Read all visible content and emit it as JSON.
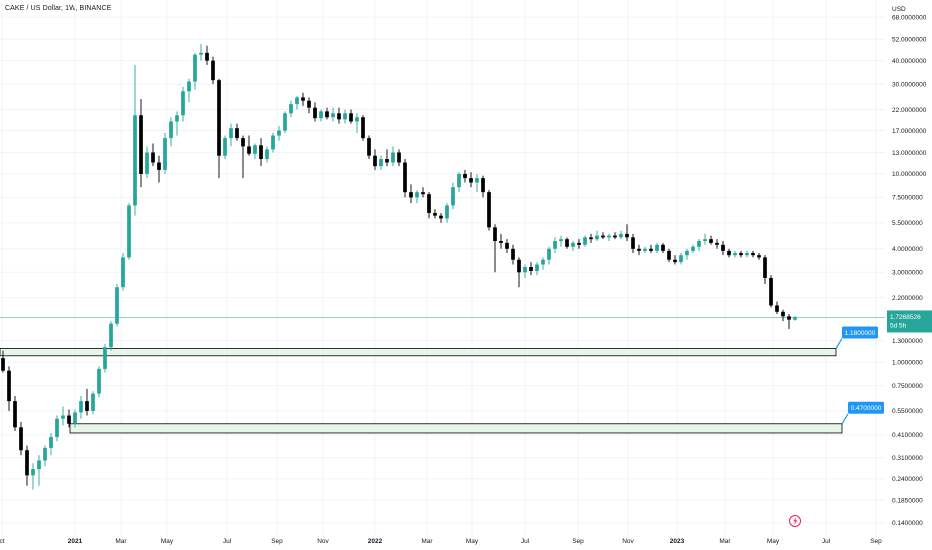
{
  "header": {
    "title": "CAKE / US Dollar, 1W, BINANCE",
    "currency": "USD"
  },
  "colors": {
    "up": "#26a69a",
    "down": "#000000",
    "grid": "#f0f3fa",
    "axis_text": "#131722",
    "zone_fill": "#e8f5e9",
    "zone_border": "#000000",
    "label_bg": "#2196f3",
    "current_price_bg": "#26a69a"
  },
  "chart_data": {
    "type": "candlestick",
    "title": "CAKE / US Dollar, 1W, BINANCE",
    "y_scale": "log",
    "ylim": [
      0.125,
      80
    ],
    "y_ticks": [
      "68.0000000",
      "52.0000000",
      "40.0000000",
      "30.0000000",
      "22.0000000",
      "17.0000000",
      "13.0000000",
      "10.0000000",
      "7.5000000",
      "5.5000000",
      "4.0000000",
      "3.0000000",
      "2.2000000",
      "1.3000000",
      "1.0000000",
      "0.7500000",
      "0.5500000",
      "0.4100000",
      "0.3100000",
      "0.2400000",
      "0.1850000",
      "0.1400000"
    ],
    "x_ticks": [
      "ct",
      "2021",
      "Mar",
      "May",
      "Jul",
      "Sep",
      "Nov",
      "2022",
      "Mar",
      "May",
      "Jul",
      "Sep",
      "Nov",
      "2023",
      "Mar",
      "May",
      "Jul",
      "Sep"
    ],
    "grid": true,
    "current_price": {
      "value": "1.7268526",
      "countdown": "5d 5h"
    },
    "zones": [
      {
        "label": "1.1800000",
        "top": 1.18,
        "bottom": 1.08
      },
      {
        "label": "0.4700000",
        "top": 0.47,
        "bottom": 0.42
      }
    ],
    "candles": [
      {
        "o": 1.05,
        "h": 1.15,
        "l": 0.88,
        "c": 0.9
      },
      {
        "o": 0.9,
        "h": 0.95,
        "l": 0.55,
        "c": 0.62
      },
      {
        "o": 0.62,
        "h": 0.66,
        "l": 0.43,
        "c": 0.45
      },
      {
        "o": 0.45,
        "h": 0.48,
        "l": 0.32,
        "c": 0.34
      },
      {
        "o": 0.34,
        "h": 0.36,
        "l": 0.22,
        "c": 0.25
      },
      {
        "o": 0.25,
        "h": 0.29,
        "l": 0.21,
        "c": 0.27
      },
      {
        "o": 0.27,
        "h": 0.32,
        "l": 0.22,
        "c": 0.3
      },
      {
        "o": 0.3,
        "h": 0.36,
        "l": 0.28,
        "c": 0.35
      },
      {
        "o": 0.35,
        "h": 0.42,
        "l": 0.32,
        "c": 0.4
      },
      {
        "o": 0.4,
        "h": 0.52,
        "l": 0.38,
        "c": 0.5
      },
      {
        "o": 0.5,
        "h": 0.58,
        "l": 0.46,
        "c": 0.52
      },
      {
        "o": 0.52,
        "h": 0.56,
        "l": 0.45,
        "c": 0.47
      },
      {
        "o": 0.47,
        "h": 0.56,
        "l": 0.45,
        "c": 0.54
      },
      {
        "o": 0.54,
        "h": 0.66,
        "l": 0.5,
        "c": 0.62
      },
      {
        "o": 0.62,
        "h": 0.72,
        "l": 0.52,
        "c": 0.55
      },
      {
        "o": 0.55,
        "h": 0.7,
        "l": 0.53,
        "c": 0.68
      },
      {
        "o": 0.68,
        "h": 0.95,
        "l": 0.65,
        "c": 0.92
      },
      {
        "o": 0.92,
        "h": 1.25,
        "l": 0.88,
        "c": 1.2
      },
      {
        "o": 1.2,
        "h": 1.65,
        "l": 1.15,
        "c": 1.6
      },
      {
        "o": 1.6,
        "h": 2.6,
        "l": 1.55,
        "c": 2.5
      },
      {
        "o": 2.5,
        "h": 3.8,
        "l": 2.4,
        "c": 3.6
      },
      {
        "o": 3.6,
        "h": 7.0,
        "l": 3.5,
        "c": 6.8
      },
      {
        "o": 6.8,
        "h": 38.0,
        "l": 6.0,
        "c": 20.5
      },
      {
        "o": 20.5,
        "h": 25.0,
        "l": 8.5,
        "c": 10.0
      },
      {
        "o": 10.0,
        "h": 14.0,
        "l": 9.5,
        "c": 13.0
      },
      {
        "o": 13.0,
        "h": 14.5,
        "l": 11.0,
        "c": 11.5
      },
      {
        "o": 11.5,
        "h": 12.5,
        "l": 9.0,
        "c": 10.5
      },
      {
        "o": 10.5,
        "h": 16.5,
        "l": 10.0,
        "c": 15.5
      },
      {
        "o": 15.5,
        "h": 20.0,
        "l": 14.0,
        "c": 19.0
      },
      {
        "o": 19.0,
        "h": 21.5,
        "l": 16.0,
        "c": 20.5
      },
      {
        "o": 20.5,
        "h": 29.0,
        "l": 19.0,
        "c": 27.5
      },
      {
        "o": 27.5,
        "h": 32.0,
        "l": 24.0,
        "c": 31.0
      },
      {
        "o": 31.0,
        "h": 44.0,
        "l": 28.0,
        "c": 43.0
      },
      {
        "o": 43.0,
        "h": 49.0,
        "l": 40.0,
        "c": 44.0
      },
      {
        "o": 44.0,
        "h": 48.0,
        "l": 38.0,
        "c": 40.0
      },
      {
        "o": 40.0,
        "h": 42.0,
        "l": 30.0,
        "c": 31.5
      },
      {
        "o": 31.5,
        "h": 32.0,
        "l": 9.5,
        "c": 12.5
      },
      {
        "o": 12.5,
        "h": 16.0,
        "l": 12.0,
        "c": 15.5
      },
      {
        "o": 15.5,
        "h": 18.5,
        "l": 14.0,
        "c": 17.5
      },
      {
        "o": 17.5,
        "h": 18.5,
        "l": 15.0,
        "c": 15.5
      },
      {
        "o": 15.5,
        "h": 16.0,
        "l": 9.5,
        "c": 14.0
      },
      {
        "o": 14.0,
        "h": 16.0,
        "l": 12.5,
        "c": 12.8
      },
      {
        "o": 12.8,
        "h": 14.5,
        "l": 12.0,
        "c": 14.2
      },
      {
        "o": 14.2,
        "h": 15.5,
        "l": 11.0,
        "c": 12.0
      },
      {
        "o": 12.0,
        "h": 14.0,
        "l": 11.5,
        "c": 13.5
      },
      {
        "o": 13.5,
        "h": 16.5,
        "l": 13.0,
        "c": 16.0
      },
      {
        "o": 16.0,
        "h": 18.0,
        "l": 15.0,
        "c": 17.0
      },
      {
        "o": 17.0,
        "h": 21.5,
        "l": 16.5,
        "c": 21.0
      },
      {
        "o": 21.0,
        "h": 24.5,
        "l": 20.0,
        "c": 23.5
      },
      {
        "o": 23.5,
        "h": 26.0,
        "l": 22.0,
        "c": 25.5
      },
      {
        "o": 25.5,
        "h": 27.0,
        "l": 23.0,
        "c": 24.5
      },
      {
        "o": 24.5,
        "h": 25.5,
        "l": 21.0,
        "c": 22.5
      },
      {
        "o": 22.5,
        "h": 24.0,
        "l": 19.0,
        "c": 19.8
      },
      {
        "o": 19.8,
        "h": 22.0,
        "l": 19.0,
        "c": 21.5
      },
      {
        "o": 21.5,
        "h": 22.5,
        "l": 19.5,
        "c": 20.0
      },
      {
        "o": 20.0,
        "h": 22.5,
        "l": 19.0,
        "c": 21.0
      },
      {
        "o": 21.0,
        "h": 22.5,
        "l": 18.5,
        "c": 19.5
      },
      {
        "o": 19.5,
        "h": 22.0,
        "l": 18.5,
        "c": 21.0
      },
      {
        "o": 21.0,
        "h": 22.0,
        "l": 18.5,
        "c": 19.0
      },
      {
        "o": 19.0,
        "h": 21.0,
        "l": 16.5,
        "c": 20.0
      },
      {
        "o": 20.0,
        "h": 20.5,
        "l": 15.0,
        "c": 15.5
      },
      {
        "o": 15.5,
        "h": 16.0,
        "l": 12.0,
        "c": 12.5
      },
      {
        "o": 12.5,
        "h": 13.5,
        "l": 10.5,
        "c": 11.0
      },
      {
        "o": 11.0,
        "h": 12.5,
        "l": 10.5,
        "c": 12.0
      },
      {
        "o": 12.0,
        "h": 13.5,
        "l": 11.0,
        "c": 11.5
      },
      {
        "o": 11.5,
        "h": 14.0,
        "l": 11.0,
        "c": 13.0
      },
      {
        "o": 13.0,
        "h": 13.5,
        "l": 11.0,
        "c": 11.5
      },
      {
        "o": 11.5,
        "h": 12.0,
        "l": 7.5,
        "c": 8.0
      },
      {
        "o": 8.0,
        "h": 8.8,
        "l": 7.0,
        "c": 7.5
      },
      {
        "o": 7.5,
        "h": 8.2,
        "l": 7.0,
        "c": 8.0
      },
      {
        "o": 8.0,
        "h": 8.5,
        "l": 7.5,
        "c": 7.8
      },
      {
        "o": 7.8,
        "h": 8.0,
        "l": 5.8,
        "c": 6.2
      },
      {
        "o": 6.2,
        "h": 6.5,
        "l": 5.8,
        "c": 6.0
      },
      {
        "o": 6.0,
        "h": 6.2,
        "l": 5.5,
        "c": 5.8
      },
      {
        "o": 5.8,
        "h": 7.0,
        "l": 5.5,
        "c": 6.8
      },
      {
        "o": 6.8,
        "h": 9.0,
        "l": 6.5,
        "c": 8.5
      },
      {
        "o": 8.5,
        "h": 10.2,
        "l": 8.0,
        "c": 10.0
      },
      {
        "o": 10.0,
        "h": 10.5,
        "l": 9.0,
        "c": 9.5
      },
      {
        "o": 9.5,
        "h": 10.2,
        "l": 8.5,
        "c": 9.0
      },
      {
        "o": 9.0,
        "h": 10.0,
        "l": 8.0,
        "c": 9.5
      },
      {
        "o": 9.5,
        "h": 9.8,
        "l": 7.5,
        "c": 8.0
      },
      {
        "o": 8.0,
        "h": 8.2,
        "l": 5.0,
        "c": 5.2
      },
      {
        "o": 5.2,
        "h": 5.4,
        "l": 3.0,
        "c": 4.4
      },
      {
        "o": 4.4,
        "h": 4.8,
        "l": 4.0,
        "c": 4.3
      },
      {
        "o": 4.3,
        "h": 4.5,
        "l": 3.8,
        "c": 4.0
      },
      {
        "o": 4.0,
        "h": 4.2,
        "l": 3.3,
        "c": 3.5
      },
      {
        "o": 3.5,
        "h": 3.6,
        "l": 2.5,
        "c": 3.0
      },
      {
        "o": 3.0,
        "h": 3.3,
        "l": 2.8,
        "c": 3.2
      },
      {
        "o": 3.2,
        "h": 3.4,
        "l": 2.9,
        "c": 3.05
      },
      {
        "o": 3.05,
        "h": 3.4,
        "l": 2.9,
        "c": 3.3
      },
      {
        "o": 3.3,
        "h": 3.6,
        "l": 3.1,
        "c": 3.5
      },
      {
        "o": 3.5,
        "h": 4.1,
        "l": 3.3,
        "c": 4.0
      },
      {
        "o": 4.0,
        "h": 4.6,
        "l": 3.8,
        "c": 4.4
      },
      {
        "o": 4.4,
        "h": 4.7,
        "l": 4.1,
        "c": 4.5
      },
      {
        "o": 4.5,
        "h": 4.6,
        "l": 4.0,
        "c": 4.1
      },
      {
        "o": 4.1,
        "h": 4.4,
        "l": 3.9,
        "c": 4.3
      },
      {
        "o": 4.3,
        "h": 4.5,
        "l": 4.0,
        "c": 4.2
      },
      {
        "o": 4.2,
        "h": 4.7,
        "l": 4.1,
        "c": 4.6
      },
      {
        "o": 4.6,
        "h": 4.8,
        "l": 4.3,
        "c": 4.5
      },
      {
        "o": 4.5,
        "h": 5.0,
        "l": 4.4,
        "c": 4.7
      },
      {
        "o": 4.7,
        "h": 4.9,
        "l": 4.5,
        "c": 4.6
      },
      {
        "o": 4.6,
        "h": 4.8,
        "l": 4.4,
        "c": 4.7
      },
      {
        "o": 4.7,
        "h": 4.9,
        "l": 4.5,
        "c": 4.6
      },
      {
        "o": 4.6,
        "h": 5.0,
        "l": 4.5,
        "c": 4.8
      },
      {
        "o": 4.8,
        "h": 5.4,
        "l": 4.4,
        "c": 4.6
      },
      {
        "o": 4.6,
        "h": 4.8,
        "l": 3.8,
        "c": 4.0
      },
      {
        "o": 4.0,
        "h": 4.2,
        "l": 3.7,
        "c": 3.9
      },
      {
        "o": 3.9,
        "h": 4.1,
        "l": 3.8,
        "c": 4.0
      },
      {
        "o": 4.0,
        "h": 4.2,
        "l": 3.8,
        "c": 3.9
      },
      {
        "o": 3.9,
        "h": 4.3,
        "l": 3.8,
        "c": 4.2
      },
      {
        "o": 4.2,
        "h": 4.3,
        "l": 3.8,
        "c": 3.9
      },
      {
        "o": 3.9,
        "h": 4.0,
        "l": 3.4,
        "c": 3.5
      },
      {
        "o": 3.5,
        "h": 3.7,
        "l": 3.3,
        "c": 3.4
      },
      {
        "o": 3.4,
        "h": 3.8,
        "l": 3.3,
        "c": 3.7
      },
      {
        "o": 3.7,
        "h": 4.0,
        "l": 3.5,
        "c": 3.9
      },
      {
        "o": 3.9,
        "h": 4.2,
        "l": 3.8,
        "c": 4.1
      },
      {
        "o": 4.1,
        "h": 4.5,
        "l": 3.9,
        "c": 4.4
      },
      {
        "o": 4.4,
        "h": 4.8,
        "l": 4.2,
        "c": 4.5
      },
      {
        "o": 4.5,
        "h": 4.7,
        "l": 4.2,
        "c": 4.3
      },
      {
        "o": 4.3,
        "h": 4.5,
        "l": 4.0,
        "c": 4.2
      },
      {
        "o": 4.2,
        "h": 4.4,
        "l": 3.7,
        "c": 3.9
      },
      {
        "o": 3.9,
        "h": 4.0,
        "l": 3.6,
        "c": 3.7
      },
      {
        "o": 3.7,
        "h": 3.9,
        "l": 3.6,
        "c": 3.8
      },
      {
        "o": 3.8,
        "h": 3.9,
        "l": 3.6,
        "c": 3.7
      },
      {
        "o": 3.7,
        "h": 3.9,
        "l": 3.6,
        "c": 3.8
      },
      {
        "o": 3.8,
        "h": 3.9,
        "l": 3.6,
        "c": 3.7
      },
      {
        "o": 3.7,
        "h": 3.8,
        "l": 3.5,
        "c": 3.6
      },
      {
        "o": 3.6,
        "h": 3.7,
        "l": 2.6,
        "c": 2.8
      },
      {
        "o": 2.8,
        "h": 2.9,
        "l": 1.95,
        "c": 2.0
      },
      {
        "o": 2.0,
        "h": 2.1,
        "l": 1.8,
        "c": 1.85
      },
      {
        "o": 1.85,
        "h": 1.9,
        "l": 1.65,
        "c": 1.75
      },
      {
        "o": 1.75,
        "h": 1.8,
        "l": 1.5,
        "c": 1.68
      },
      {
        "o": 1.68,
        "h": 1.76,
        "l": 1.66,
        "c": 1.7268526
      }
    ]
  }
}
